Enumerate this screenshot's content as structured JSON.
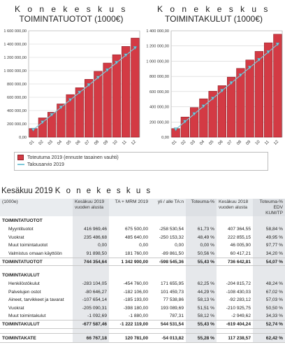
{
  "colors": {
    "bar_fill": "#d33a44",
    "bar_edge": "#8e2028",
    "budget_line": "#7fc8d9",
    "budget_marker": "#7fc8d9"
  },
  "chart_data": [
    {
      "type": "bar",
      "title_line1": "K o n e k e s k u s",
      "title_line2": "TOIMINTATUOTOT (1000€)",
      "categories": [
        "01",
        "02",
        "03",
        "04",
        "05",
        "06",
        "07",
        "08",
        "09",
        "10",
        "11",
        "12"
      ],
      "y_tick_labels": [
        "0,00",
        "200 000,00",
        "400 000,00",
        "600 000,00",
        "800 000,00",
        "1 000 000,00",
        "1 200 000,00",
        "1 400 000,00",
        "1 600 000,00"
      ],
      "ylim": [
        0,
        1600000
      ],
      "grid": true,
      "legend_position": "bottom",
      "series": [
        {
          "name": "Toteutuma 2019 (ennuste tasainen vauhti)",
          "kind": "bar",
          "values": [
            130000,
            290000,
            375000,
            500000,
            640000,
            744000,
            870000,
            990000,
            1115000,
            1240000,
            1365000,
            1490000
          ]
        },
        {
          "name": "Talousarvio 2019",
          "kind": "line",
          "values": [
            112000,
            224000,
            336000,
            448000,
            560000,
            672000,
            784000,
            896000,
            1008000,
            1120000,
            1232000,
            1343000
          ]
        }
      ]
    },
    {
      "type": "bar",
      "title_line1": "K o n e k e s k u s",
      "title_line2": "TOIMINTAKULUT (1000€)",
      "categories": [
        "01",
        "02",
        "03",
        "04",
        "05",
        "06",
        "07",
        "08",
        "09",
        "10",
        "11",
        "12"
      ],
      "y_tick_labels": [
        "0,00",
        "200 000,00",
        "400 000,00",
        "600 000,00",
        "800 000,00",
        "1 000 000,00",
        "1 200 000,00",
        "1 400 000,00"
      ],
      "ylim": [
        0,
        1400000
      ],
      "grid": true,
      "legend_position": "bottom",
      "series": [
        {
          "name": "Toteutuma 2019 (ennuste tasainen vauhti)",
          "kind": "bar",
          "values": [
            113000,
            265000,
            390000,
            505000,
            605000,
            678000,
            790000,
            905000,
            1016000,
            1129000,
            1242000,
            1355000
          ]
        },
        {
          "name": "Talousarvio 2019",
          "kind": "line",
          "values": [
            102000,
            204000,
            305000,
            407000,
            509000,
            611000,
            713000,
            815000,
            917000,
            1018000,
            1120000,
            1222000
          ]
        }
      ]
    }
  ],
  "report": {
    "title_prefix": "Kesäkuu 2019",
    "title_spaced": "K o n e k e s k u s",
    "headers": [
      "(1000e)",
      "Kesäkuu 2019 vuoden alusta",
      "TA + MRM 2019",
      "yli / alle TA:n",
      "Toteuma-%",
      "Kesäkuu 2018 vuoden alusta",
      "Toteuma-% EDV KUM/TP"
    ],
    "rows": [
      {
        "kind": "sect",
        "cells": [
          "TOIMINTATUOTOT",
          "",
          "",
          "",
          "",
          "",
          ""
        ]
      },
      {
        "kind": "item",
        "cells": [
          "Myyntituotot",
          "416 969,46",
          "675 500,00",
          "-258 530,54",
          "61,73 %",
          "407 364,55",
          "58,84 %"
        ]
      },
      {
        "kind": "item",
        "cells": [
          "Vuokrat",
          "235 486,68",
          "485 640,00",
          "-250 153,32",
          "48,49 %",
          "222 855,15",
          "49,95 %"
        ]
      },
      {
        "kind": "item",
        "cells": [
          "Muut toimintatuotot",
          "0,00",
          "0,00",
          "0,00",
          "0,00 %",
          "46 005,90",
          "97,77 %"
        ]
      },
      {
        "kind": "item",
        "cells": [
          "Valmistus omaan käyttöön",
          "91 898,50",
          "181 760,00",
          "-89 861,50",
          "50,56 %",
          "60 417,21",
          "34,20 %"
        ]
      },
      {
        "kind": "total",
        "cells": [
          "TOIMINTATUOTOT",
          "744 354,64",
          "1 342 900,00",
          "-598 545,36",
          "55,43 %",
          "736 642,81",
          "54,07 %"
        ]
      },
      {
        "kind": "blank",
        "cells": [
          "",
          "",
          "",
          "",
          "",
          "",
          ""
        ]
      },
      {
        "kind": "sect",
        "cells": [
          "TOIMINTAKULUT",
          "",
          "",
          "",
          "",
          "",
          ""
        ]
      },
      {
        "kind": "item",
        "cells": [
          "Henkilöstökulut",
          "-283 104,05",
          "-454 760,00",
          "171 655,95",
          "62,25 %",
          "-204 815,72",
          "48,24 %"
        ]
      },
      {
        "kind": "item",
        "cells": [
          "Palvelujen ostot",
          "-80 646,27",
          "-182 106,00",
          "101 459,73",
          "44,29 %",
          "-108 430,03",
          "67,02 %"
        ]
      },
      {
        "kind": "item",
        "cells": [
          "Aineet, tarvikkeet ja tavarat",
          "-107 654,14",
          "-185 193,00",
          "77 538,86",
          "58,13 %",
          "-92 283,12",
          "57,03 %"
        ]
      },
      {
        "kind": "item",
        "cells": [
          "Vuokrat",
          "-205 090,31",
          "-398 180,00",
          "193 089,69",
          "51,51 %",
          "-210 925,75",
          "50,50 %"
        ]
      },
      {
        "kind": "item",
        "cells": [
          "Muut toimintakulut",
          "-1 092,69",
          "-1 880,00",
          "787,31",
          "58,12 %",
          "-2 949,62",
          "34,33 %"
        ]
      },
      {
        "kind": "total",
        "cells": [
          "TOIMINTAKULUT",
          "-677 587,46",
          "-1 222 119,00",
          "544 531,54",
          "55,43 %",
          "-619 404,24",
          "52,74 %"
        ]
      },
      {
        "kind": "blank",
        "cells": [
          "",
          "",
          "",
          "",
          "",
          "",
          ""
        ]
      },
      {
        "kind": "grand",
        "cells": [
          "TOIMINTAKATE",
          "66 767,18",
          "120 781,00",
          "-54 013,82",
          "55,28 %",
          "117 238,57",
          "62,42 %"
        ]
      }
    ]
  }
}
